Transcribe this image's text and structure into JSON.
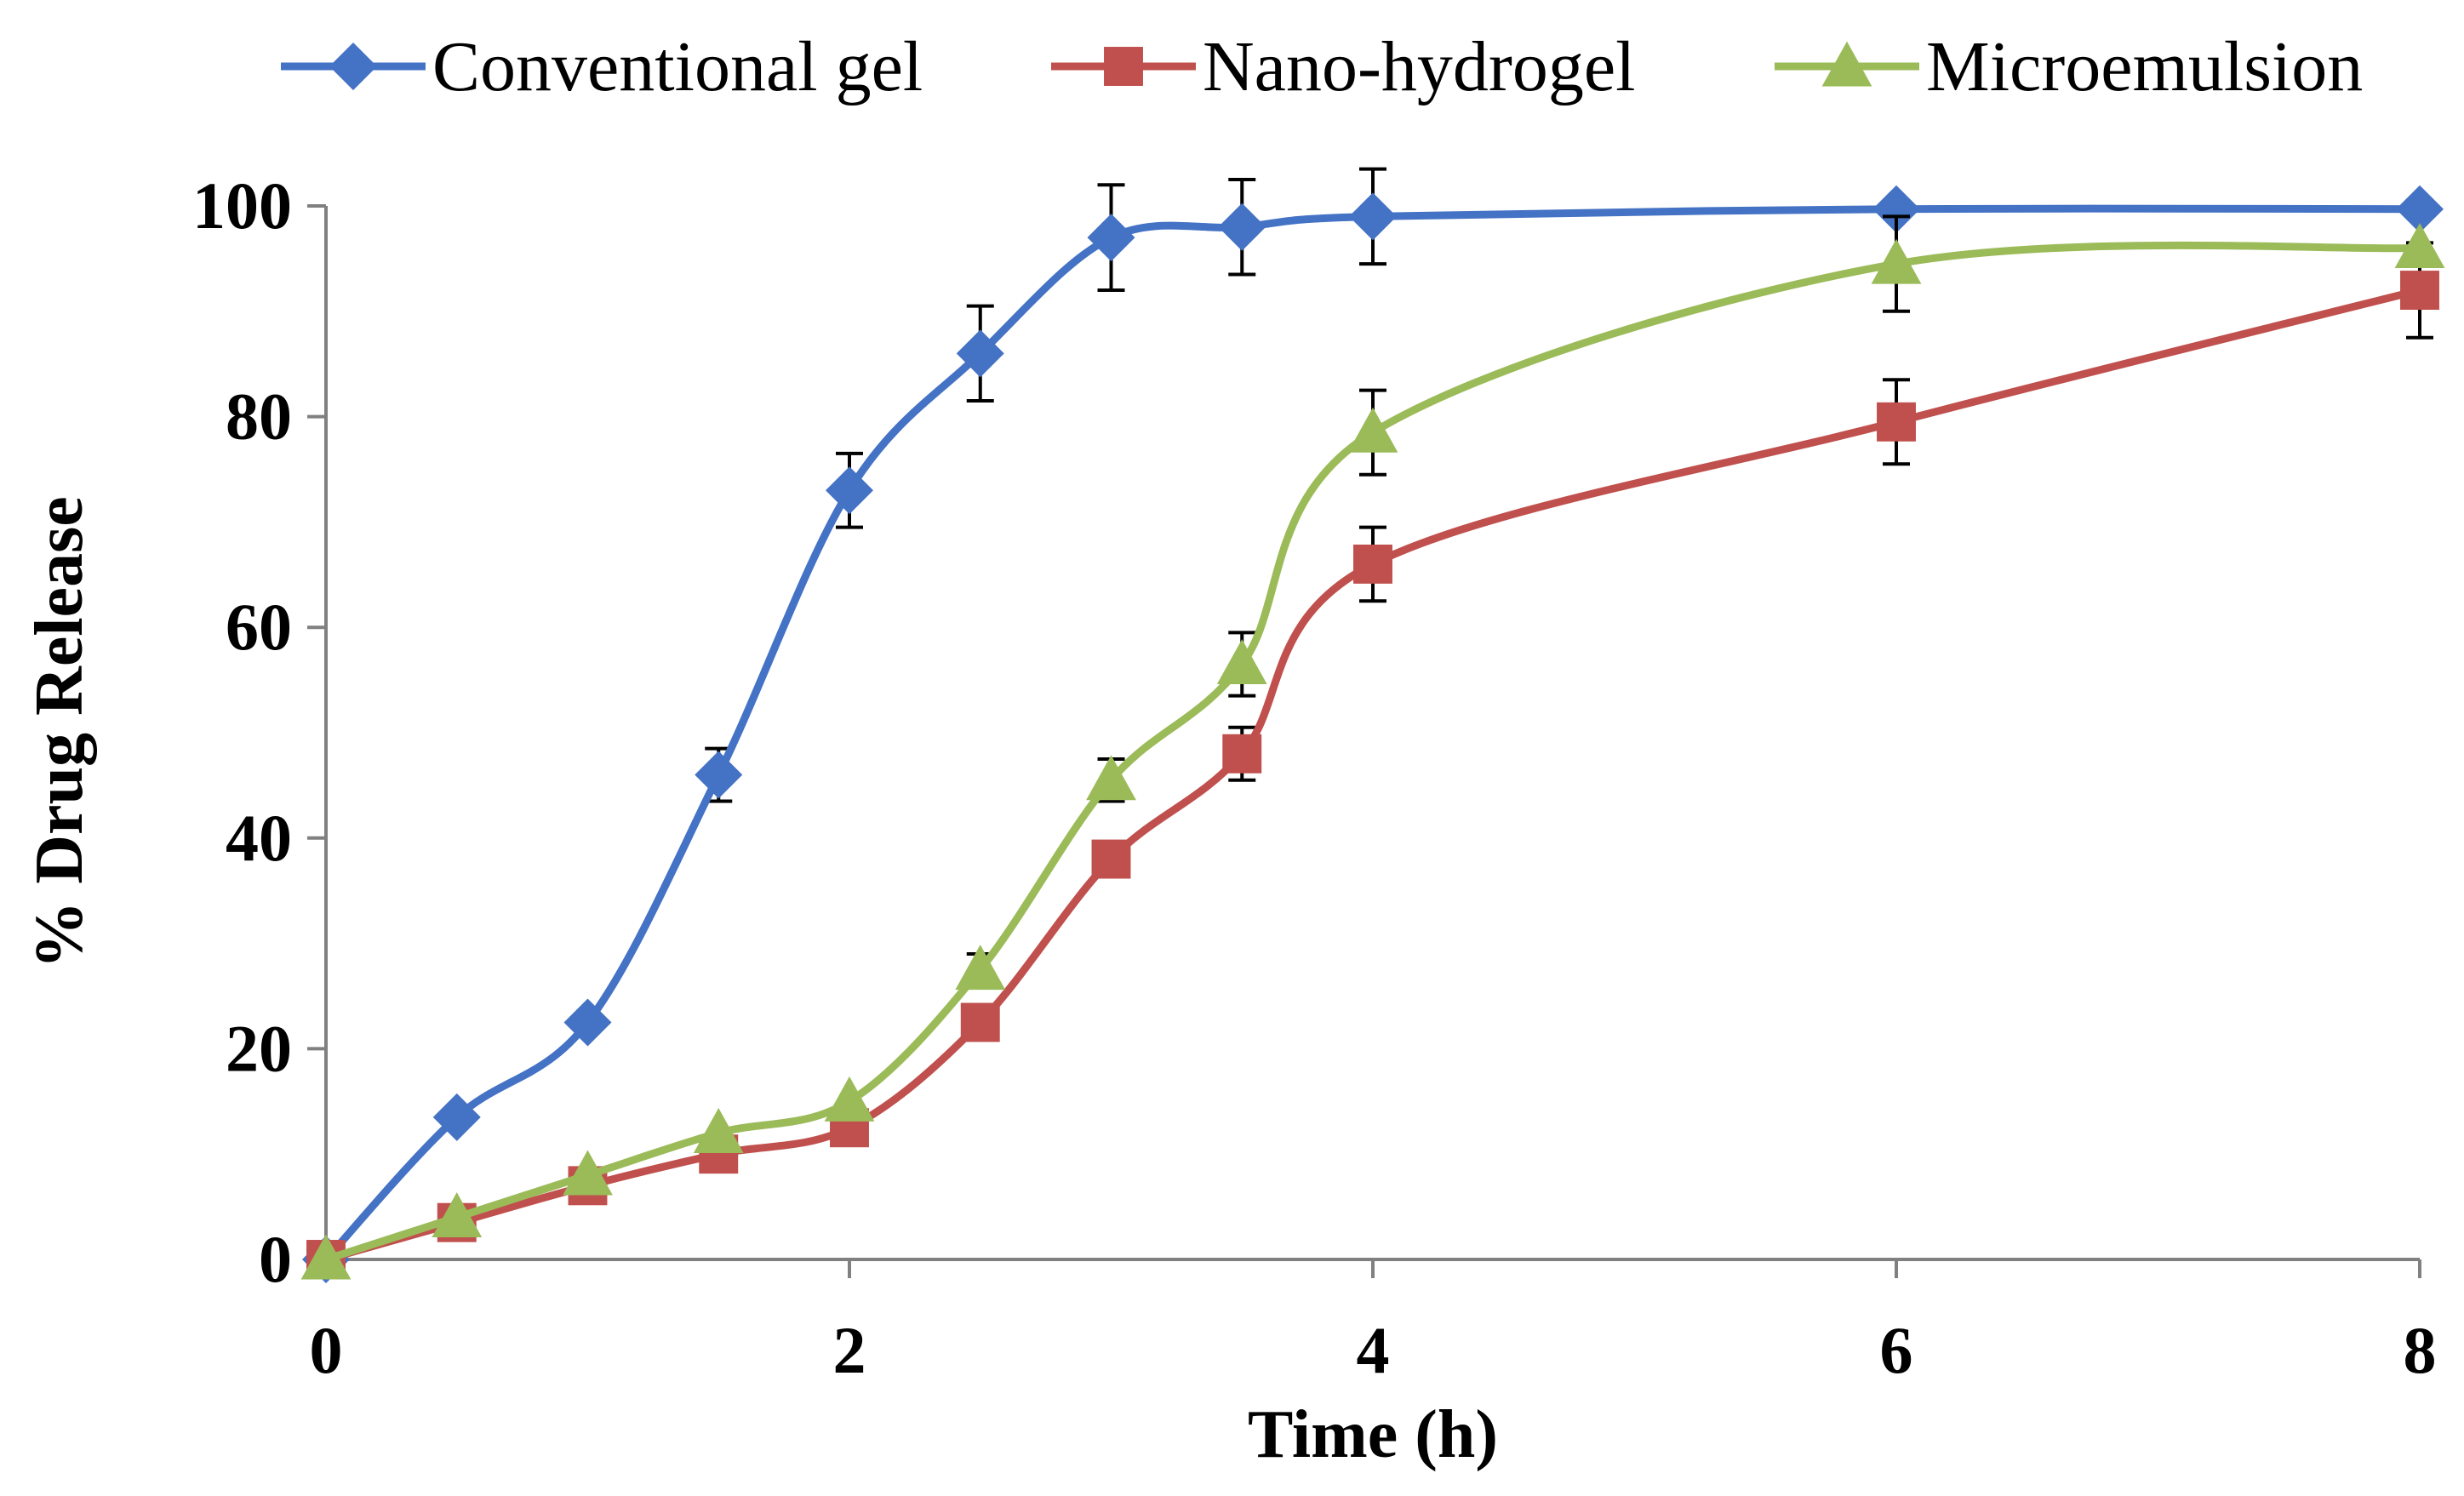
{
  "chart_data": {
    "type": "line",
    "xlabel": "Time (h)",
    "ylabel": "% Drug Release",
    "xlim": [
      0,
      8
    ],
    "ylim": [
      0,
      100
    ],
    "x_ticks": [
      0,
      2,
      4,
      6,
      8
    ],
    "y_ticks": [
      0,
      20,
      40,
      60,
      80,
      100
    ],
    "grid": false,
    "legend_position": "top",
    "x": [
      0,
      0.5,
      1,
      1.5,
      2,
      2.5,
      3,
      3.5,
      4,
      6,
      8
    ],
    "series": [
      {
        "name": "Conventional gel",
        "color": "#4472C4",
        "marker": "diamond",
        "values": [
          0,
          13.5,
          22.5,
          46,
          73,
          86,
          97,
          98,
          99,
          99.7,
          99.7
        ],
        "errors": [
          0,
          0,
          0,
          2.5,
          3.5,
          4.5,
          5,
          4.5,
          4.5,
          0,
          0
        ]
      },
      {
        "name": "Nano-hydrogel",
        "color": "#C0504D",
        "marker": "square",
        "values": [
          0,
          3.5,
          7,
          10,
          12.5,
          22.5,
          38,
          48,
          66,
          79.5,
          92
        ],
        "errors": [
          0,
          0,
          0,
          0,
          0,
          0,
          0,
          2.5,
          3.5,
          4,
          4.5
        ]
      },
      {
        "name": "Microemulsion",
        "color": "#9BBB59",
        "marker": "triangle",
        "values": [
          0,
          4,
          8,
          12,
          15,
          27.5,
          45.5,
          56.5,
          78.5,
          94.5,
          96
        ],
        "errors": [
          0,
          0,
          0,
          0,
          0,
          1.5,
          2,
          3,
          4,
          4.5,
          0
        ]
      }
    ]
  }
}
